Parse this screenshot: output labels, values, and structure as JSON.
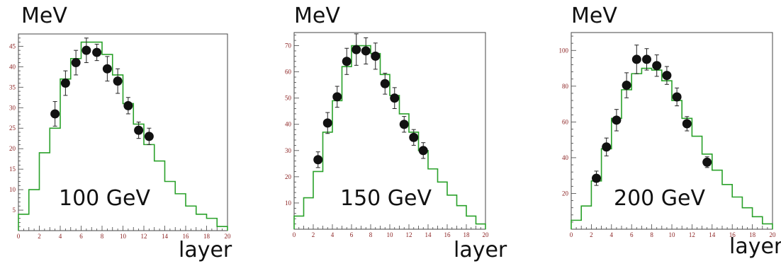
{
  "chart_data": [
    {
      "type": "line",
      "ylabel": "MeV",
      "xlabel": "layer",
      "annotation": "100 GeV",
      "xlim": [
        0,
        20
      ],
      "ylim": [
        0,
        48
      ],
      "xticks": [
        0,
        2,
        4,
        6,
        8,
        10,
        12,
        14,
        16,
        18,
        20
      ],
      "yticks": [
        5,
        10,
        15,
        20,
        25,
        30,
        35,
        40,
        45
      ],
      "line_color": "#2aa12a",
      "step_values": [
        4,
        10,
        19,
        25,
        37,
        42,
        46,
        46,
        43,
        38,
        31,
        26,
        21,
        17,
        12,
        9,
        6,
        4,
        3,
        1
      ],
      "points": [
        {
          "x": 3.5,
          "y": 28.5,
          "err": 3
        },
        {
          "x": 4.5,
          "y": 36,
          "err": 3
        },
        {
          "x": 5.5,
          "y": 41,
          "err": 3
        },
        {
          "x": 6.5,
          "y": 44,
          "err": 3
        },
        {
          "x": 7.5,
          "y": 43.5,
          "err": 2
        },
        {
          "x": 8.5,
          "y": 39.5,
          "err": 3
        },
        {
          "x": 9.5,
          "y": 36.5,
          "err": 3
        },
        {
          "x": 10.5,
          "y": 30.5,
          "err": 2
        },
        {
          "x": 11.5,
          "y": 24.5,
          "err": 2
        },
        {
          "x": 12.5,
          "y": 23,
          "err": 2
        }
      ]
    },
    {
      "type": "line",
      "ylabel": "MeV",
      "xlabel": "layer",
      "annotation": "150 GeV",
      "xlim": [
        0,
        20
      ],
      "ylim": [
        0,
        75
      ],
      "xticks": [
        0,
        2,
        4,
        6,
        8,
        10,
        12,
        14,
        16,
        18,
        20
      ],
      "yticks": [
        10,
        20,
        30,
        40,
        50,
        60,
        70
      ],
      "line_color": "#2aa12a",
      "step_values": [
        5,
        12,
        22,
        37,
        49,
        62,
        70,
        70,
        67,
        59,
        51,
        44,
        37,
        30,
        23,
        18,
        13,
        9,
        5,
        2
      ],
      "points": [
        {
          "x": 2.5,
          "y": 26.5,
          "err": 3
        },
        {
          "x": 3.5,
          "y": 40.5,
          "err": 4
        },
        {
          "x": 4.5,
          "y": 50.5,
          "err": 4
        },
        {
          "x": 5.5,
          "y": 64,
          "err": 5
        },
        {
          "x": 6.5,
          "y": 68.5,
          "err": 6
        },
        {
          "x": 7.5,
          "y": 68,
          "err": 5
        },
        {
          "x": 8.5,
          "y": 66,
          "err": 5
        },
        {
          "x": 9.5,
          "y": 55.5,
          "err": 4
        },
        {
          "x": 10.5,
          "y": 50,
          "err": 4
        },
        {
          "x": 11.5,
          "y": 40,
          "err": 3
        },
        {
          "x": 12.5,
          "y": 35,
          "err": 3
        },
        {
          "x": 13.5,
          "y": 30,
          "err": 3
        }
      ]
    },
    {
      "type": "line",
      "ylabel": "MeV",
      "xlabel": "layer",
      "annotation": "200 GeV",
      "xlim": [
        0,
        20
      ],
      "ylim": [
        0,
        110
      ],
      "xticks": [
        0,
        2,
        4,
        6,
        8,
        10,
        12,
        14,
        16,
        18,
        20
      ],
      "yticks": [
        20,
        40,
        60,
        80,
        100
      ],
      "line_color": "#2aa12a",
      "step_values": [
        5,
        13,
        27,
        45,
        62,
        78,
        87,
        90,
        89,
        83,
        72,
        62,
        52,
        42,
        33,
        25,
        18,
        12,
        7,
        3
      ],
      "points": [
        {
          "x": 2.5,
          "y": 28.5,
          "err": 4
        },
        {
          "x": 3.5,
          "y": 46,
          "err": 5
        },
        {
          "x": 4.5,
          "y": 61,
          "err": 6
        },
        {
          "x": 5.5,
          "y": 80.5,
          "err": 7
        },
        {
          "x": 6.5,
          "y": 95,
          "err": 8
        },
        {
          "x": 7.5,
          "y": 95,
          "err": 6
        },
        {
          "x": 8.5,
          "y": 91.5,
          "err": 6
        },
        {
          "x": 9.5,
          "y": 86,
          "err": 5
        },
        {
          "x": 10.5,
          "y": 74,
          "err": 5
        },
        {
          "x": 11.5,
          "y": 59,
          "err": 4
        },
        {
          "x": 13.5,
          "y": 37.5,
          "err": 3
        }
      ]
    }
  ]
}
